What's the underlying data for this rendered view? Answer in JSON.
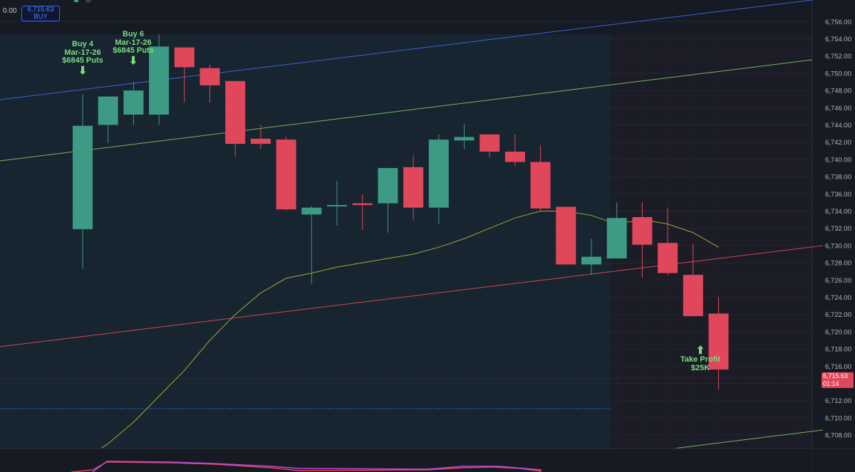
{
  "header": {
    "left_value": "0.00",
    "order_price": "6,715.63",
    "order_side": "BUY"
  },
  "annotations": {
    "buy1": [
      "Buy 4",
      "Mar-17-26",
      "$6845 Puts"
    ],
    "buy2": [
      "Buy 6",
      "Mar-17-26",
      "$6845 Puts"
    ],
    "take_profit": [
      "Take Profit",
      "$25K"
    ]
  },
  "price_tag": {
    "price": "6,715.63",
    "countdown": "01:14"
  },
  "colors": {
    "background": "#161a23",
    "session_shade": "#162530",
    "up": "#3d9a84",
    "down": "#e0475a",
    "channel_upper": "#3d63d6",
    "channel_mid": "#7ab65c",
    "channel_lower": "#d64550",
    "moving_average": "#a4a83b",
    "annotation": "#7bdc7e",
    "order_line": "#2f6bff"
  },
  "chart_data": {
    "type": "candlestick",
    "y_axis": {
      "range": [
        6707,
        6757.5
      ],
      "tick_labels": [
        "6,756.00",
        "6,754.00",
        "6,752.00",
        "6,750.00",
        "6,748.00",
        "6,746.00",
        "6,744.00",
        "6,742.00",
        "6,740.00",
        "6,738.00",
        "6,736.00",
        "6,734.00",
        "6,732.00",
        "6,730.00",
        "6,728.00",
        "6,726.00",
        "6,724.00",
        "6,722.00",
        "6,720.00",
        "6,718.00",
        "6,716.00",
        "6,714.00",
        "6,712.00",
        "6,710.00",
        "6,708.00"
      ]
    },
    "candles": [
      {
        "o": 6731.9,
        "h": 6747.5,
        "l": 6727.3,
        "c": 6743.9
      },
      {
        "o": 6744.0,
        "h": 6747.3,
        "l": 6741.9,
        "c": 6747.3
      },
      {
        "o": 6745.2,
        "h": 6749.0,
        "l": 6744.0,
        "c": 6748.0
      },
      {
        "o": 6745.2,
        "h": 6754.5,
        "l": 6744.0,
        "c": 6753.1
      },
      {
        "o": 6753.0,
        "h": 6753.0,
        "l": 6746.6,
        "c": 6750.7
      },
      {
        "o": 6750.6,
        "h": 6751.0,
        "l": 6746.6,
        "c": 6748.6
      },
      {
        "o": 6749.1,
        "h": 6749.1,
        "l": 6740.3,
        "c": 6741.8
      },
      {
        "o": 6742.4,
        "h": 6744.0,
        "l": 6741.2,
        "c": 6741.8
      },
      {
        "o": 6742.3,
        "h": 6742.6,
        "l": 6734.1,
        "c": 6734.2
      },
      {
        "o": 6733.6,
        "h": 6734.6,
        "l": 6725.6,
        "c": 6734.4
      },
      {
        "o": 6734.7,
        "h": 6737.5,
        "l": 6732.3,
        "c": 6734.7
      },
      {
        "o": 6734.9,
        "h": 6735.9,
        "l": 6731.8,
        "c": 6734.7
      },
      {
        "o": 6734.9,
        "h": 6739.0,
        "l": 6731.5,
        "c": 6739.0
      },
      {
        "o": 6739.1,
        "h": 6740.5,
        "l": 6732.9,
        "c": 6734.4
      },
      {
        "o": 6734.4,
        "h": 6742.9,
        "l": 6732.5,
        "c": 6742.3
      },
      {
        "o": 6742.2,
        "h": 6744.1,
        "l": 6741.2,
        "c": 6742.6
      },
      {
        "o": 6742.9,
        "h": 6742.9,
        "l": 6740.2,
        "c": 6740.9
      },
      {
        "o": 6740.9,
        "h": 6742.9,
        "l": 6739.2,
        "c": 6739.7
      },
      {
        "o": 6739.7,
        "h": 6741.6,
        "l": 6734.0,
        "c": 6734.3
      },
      {
        "o": 6734.5,
        "h": 6734.5,
        "l": 6727.8,
        "c": 6727.8
      },
      {
        "o": 6727.8,
        "h": 6730.8,
        "l": 6726.6,
        "c": 6728.7
      },
      {
        "o": 6728.5,
        "h": 6735.0,
        "l": 6728.5,
        "c": 6733.2
      },
      {
        "o": 6733.3,
        "h": 6735.0,
        "l": 6726.3,
        "c": 6730.1
      },
      {
        "o": 6730.3,
        "h": 6734.4,
        "l": 6726.6,
        "c": 6726.8
      },
      {
        "o": 6726.6,
        "h": 6730.2,
        "l": 6721.8,
        "c": 6721.8
      },
      {
        "o": 6722.1,
        "h": 6724.0,
        "l": 6713.3,
        "c": 6715.6
      }
    ],
    "moving_average": [
      6705.0,
      6707.0,
      6709.5,
      6712.5,
      6715.5,
      6719.0,
      6722.0,
      6724.5,
      6726.2,
      6726.8,
      6727.5,
      6728.0,
      6728.5,
      6729.0,
      6729.8,
      6730.8,
      6732.0,
      6733.2,
      6734.0,
      6734.0,
      6733.5,
      6732.5,
      6733.0,
      6732.5,
      6731.5,
      6729.8
    ]
  }
}
